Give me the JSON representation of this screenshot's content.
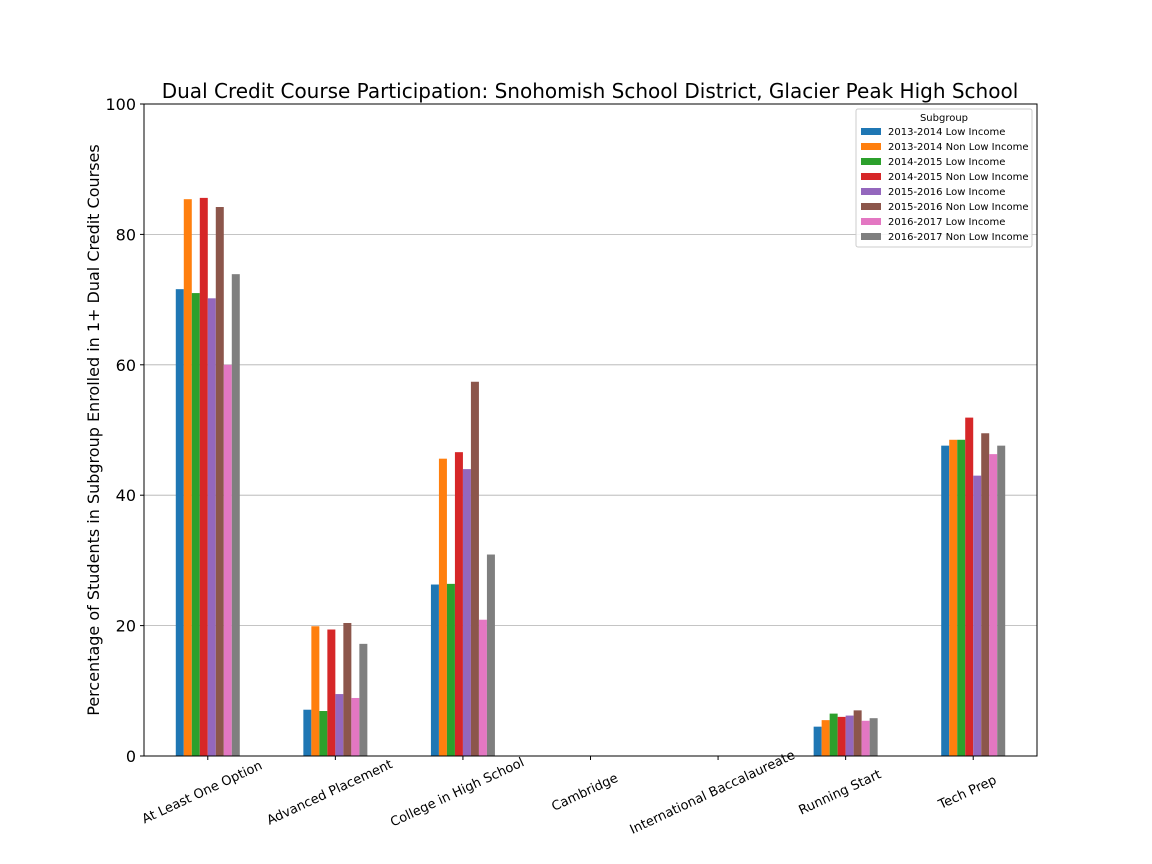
{
  "chart_data": {
    "type": "bar",
    "title": "Dual Credit Course Participation: Snohomish School District, Glacier Peak High School",
    "xlabel": "",
    "ylabel": "Percentage of Students in Subgroup Enrolled in 1+ Dual Credit Courses",
    "ylim": [
      0,
      100
    ],
    "yticks": [
      "0",
      "20",
      "40",
      "60",
      "80",
      "100"
    ],
    "grid": "y",
    "legend_title": "Subgroup",
    "legend_position": "top-right",
    "categories": [
      "At Least One Option",
      "Advanced Placement",
      "College in High School",
      "Cambridge",
      "International Baccalaureate",
      "Running Start",
      "Tech Prep"
    ],
    "series": [
      {
        "name": "2013-2014 Low Income",
        "color": "#1f77b4",
        "values": [
          71.6,
          7.1,
          26.3,
          0,
          0,
          4.5,
          47.6
        ]
      },
      {
        "name": "2013-2014 Non Low Income",
        "color": "#ff7f0e",
        "values": [
          85.4,
          19.9,
          45.6,
          0,
          0,
          5.5,
          48.5
        ]
      },
      {
        "name": "2014-2015 Low Income",
        "color": "#2ca02c",
        "values": [
          71.0,
          6.9,
          26.4,
          0,
          0,
          6.5,
          48.5
        ]
      },
      {
        "name": "2014-2015 Non Low Income",
        "color": "#d62728",
        "values": [
          85.6,
          19.4,
          46.6,
          0,
          0,
          6.0,
          51.9
        ]
      },
      {
        "name": "2015-2016 Low Income",
        "color": "#9467bd",
        "values": [
          70.2,
          9.5,
          44.0,
          0,
          0,
          6.2,
          43.0
        ]
      },
      {
        "name": "2015-2016 Non Low Income",
        "color": "#8c564b",
        "values": [
          84.2,
          20.4,
          57.4,
          0,
          0,
          7.0,
          49.5
        ]
      },
      {
        "name": "2016-2017 Low Income",
        "color": "#e377c2",
        "values": [
          60.0,
          8.9,
          20.9,
          0,
          0,
          5.4,
          46.3
        ]
      },
      {
        "name": "2016-2017 Non Low Income",
        "color": "#7f7f7f",
        "values": [
          73.9,
          17.2,
          30.9,
          0,
          0,
          5.8,
          47.6
        ]
      }
    ]
  }
}
